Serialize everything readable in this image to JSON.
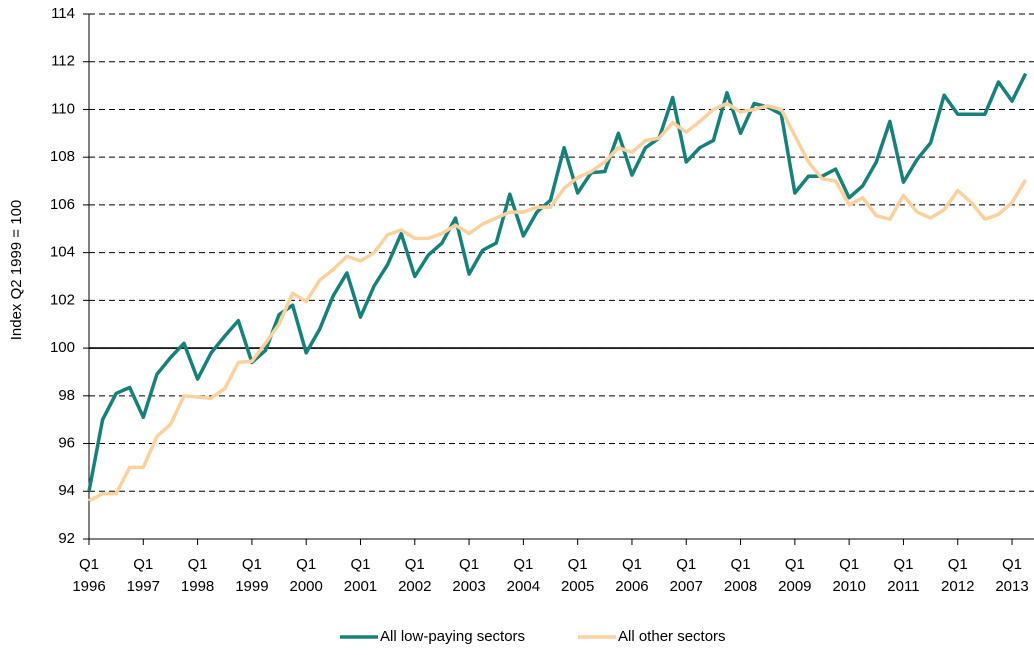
{
  "chart_data": {
    "type": "line",
    "y_label": "Index Q2 1999 = 100",
    "categories": [
      "Q1\n1996",
      null,
      null,
      null,
      "Q1\n1997",
      null,
      null,
      null,
      "Q1\n1998",
      null,
      null,
      null,
      "Q1\n1999",
      null,
      null,
      null,
      "Q1\n2000",
      null,
      null,
      null,
      "Q1\n2001",
      null,
      null,
      null,
      "Q1\n2002",
      null,
      null,
      null,
      "Q1\n2003",
      null,
      null,
      null,
      "Q1\n2004",
      null,
      null,
      null,
      "Q1\n2005",
      null,
      null,
      null,
      "Q1\n2006",
      null,
      null,
      null,
      "Q1\n2007",
      null,
      null,
      null,
      "Q1\n2008",
      null,
      null,
      null,
      "Q1\n2009",
      null,
      null,
      null,
      "Q1\n2010",
      null,
      null,
      null,
      "Q1\n2011",
      null,
      null,
      null,
      "Q1\n2012",
      null,
      null,
      null,
      "Q1\n2013",
      null
    ],
    "series": [
      {
        "name": "All low-paying sectors",
        "color": "#16807b",
        "values": [
          94.0,
          97.0,
          98.1,
          98.35,
          97.1,
          98.9,
          99.6,
          100.2,
          98.7,
          99.8,
          100.5,
          101.15,
          99.4,
          99.9,
          101.4,
          101.8,
          99.8,
          100.8,
          102.2,
          103.15,
          101.3,
          102.6,
          103.5,
          104.8,
          103.0,
          103.9,
          104.4,
          105.45,
          103.1,
          104.1,
          104.4,
          106.45,
          104.7,
          105.7,
          106.2,
          108.4,
          106.5,
          107.35,
          107.4,
          109.0,
          107.25,
          108.4,
          108.8,
          110.5,
          107.8,
          108.4,
          108.7,
          110.7,
          109.0,
          110.25,
          110.1,
          109.8,
          106.5,
          107.2,
          107.2,
          107.5,
          106.3,
          106.8,
          107.8,
          109.5,
          106.95,
          107.9,
          108.6,
          110.6,
          109.8,
          109.8,
          109.8,
          111.15,
          110.35,
          111.5
        ]
      },
      {
        "name": "All other sectors",
        "color": "#fbd19e",
        "values": [
          93.6,
          93.9,
          93.9,
          95.0,
          95.0,
          96.3,
          96.8,
          98.0,
          97.95,
          97.9,
          98.3,
          99.4,
          99.45,
          100.2,
          101.0,
          102.3,
          101.95,
          102.85,
          103.3,
          103.85,
          103.65,
          104.0,
          104.75,
          104.95,
          104.6,
          104.6,
          104.8,
          105.15,
          104.8,
          105.2,
          105.45,
          105.7,
          105.7,
          105.9,
          105.9,
          106.7,
          107.15,
          107.4,
          107.8,
          108.4,
          108.2,
          108.7,
          108.8,
          109.45,
          109.05,
          109.5,
          110.0,
          110.25,
          109.9,
          110.0,
          110.15,
          110.0,
          108.9,
          107.8,
          107.1,
          107.0,
          106.0,
          106.3,
          105.55,
          105.4,
          106.4,
          105.7,
          105.45,
          105.8,
          106.6,
          106.1,
          105.4,
          105.6,
          106.1,
          107.05
        ]
      }
    ],
    "ylim": [
      92,
      114
    ],
    "yticks": [
      92,
      94,
      96,
      98,
      100,
      102,
      104,
      106,
      108,
      110,
      112,
      114
    ],
    "reference_line": 100,
    "grid": true,
    "legend": "bottom"
  }
}
